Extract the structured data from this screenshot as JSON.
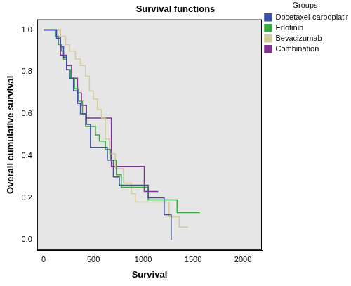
{
  "chart_data": {
    "type": "line",
    "title": "Survival functions",
    "x_label": "Survival",
    "y_label": "Overall cumulative survival",
    "legend": "right",
    "legend_title": "Groups",
    "grid": false,
    "line_style": "step",
    "marker": "none",
    "xlim": [
      -65,
      2190
    ],
    "ylim": [
      -0.05,
      1.05
    ],
    "xticks": [
      0,
      500,
      1000,
      1500,
      2000
    ],
    "yticks": [
      {
        "value": 0,
        "label": "0.0"
      },
      {
        "value": 0.2,
        "label": "0.2"
      },
      {
        "value": 0.4,
        "label": "0.4"
      },
      {
        "value": 0.6,
        "label": "0.6"
      },
      {
        "value": 0.8,
        "label": "0.8"
      },
      {
        "value": 1,
        "label": "1.0"
      }
    ],
    "series": [
      {
        "name": "Docetaxel-carboplatin",
        "color": "#3d4fa3",
        "x": [
          0,
          130,
          170,
          200,
          230,
          260,
          300,
          340,
          370,
          430,
          470,
          600,
          640,
          700,
          760,
          1030,
          1050,
          1200,
          1210,
          1270,
          1280
        ],
        "values": [
          1,
          0.96,
          0.92,
          0.87,
          0.81,
          0.77,
          0.71,
          0.65,
          0.6,
          0.55,
          0.44,
          0.44,
          0.38,
          0.3,
          0.26,
          0.26,
          0.2,
          0.2,
          0.12,
          0.12,
          0
        ]
      },
      {
        "name": "Erlotinib",
        "color": "#3aa845",
        "x": [
          0,
          120,
          150,
          180,
          200,
          230,
          270,
          310,
          350,
          390,
          420,
          520,
          560,
          620,
          670,
          730,
          780,
          1000,
          1050,
          1320,
          1340,
          1570
        ],
        "values": [
          1,
          0.97,
          0.93,
          0.9,
          0.86,
          0.81,
          0.77,
          0.72,
          0.66,
          0.6,
          0.54,
          0.5,
          0.47,
          0.43,
          0.38,
          0.31,
          0.25,
          0.25,
          0.19,
          0.19,
          0.13,
          0.13
        ]
      },
      {
        "name": "Bevacizumab",
        "color": "#d3cc98",
        "x": [
          0,
          170,
          220,
          260,
          320,
          370,
          420,
          460,
          500,
          540,
          580,
          620,
          660,
          720,
          800,
          880,
          920,
          1200,
          1260,
          1350,
          1360,
          1450
        ],
        "values": [
          1,
          0.97,
          0.93,
          0.9,
          0.86,
          0.83,
          0.78,
          0.71,
          0.67,
          0.62,
          0.58,
          0.48,
          0.41,
          0.34,
          0.27,
          0.22,
          0.18,
          0.18,
          0.11,
          0.11,
          0.06,
          0.06
        ]
      },
      {
        "name": "Combination",
        "color": "#7e3391",
        "x": [
          0,
          150,
          170,
          230,
          280,
          340,
          380,
          430,
          680,
          1000,
          1010,
          1150
        ],
        "values": [
          1,
          1,
          0.88,
          0.83,
          0.77,
          0.7,
          0.64,
          0.58,
          0.35,
          0.35,
          0.23,
          0.23
        ]
      }
    ]
  }
}
